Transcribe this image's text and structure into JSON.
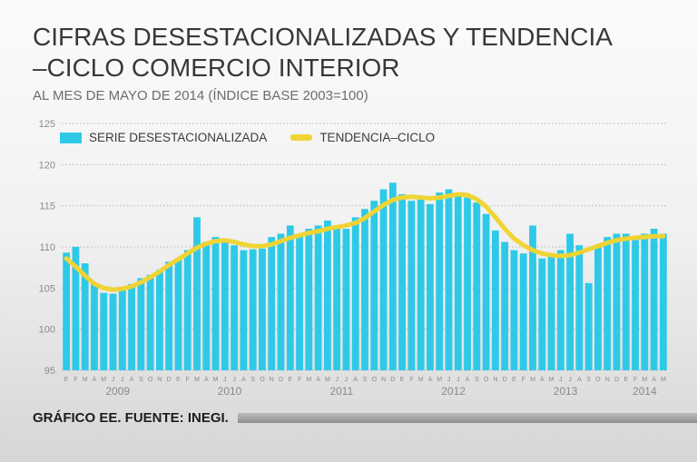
{
  "header": {
    "title_line1": "CIFRAS DESESTACIONALIZADAS Y TENDENCIA",
    "title_line2": "–CICLO COMERCIO INTERIOR",
    "subtitle": "AL MES DE MAYO DE 2014 (ÍNDICE BASE 2003=100)"
  },
  "legend": {
    "series_label": "SERIE DESESTACIONALIZADA",
    "trend_label": "TENDENCIA–CICLO"
  },
  "footer": {
    "source": "GRÁFICO EE. FUENTE: INEGI."
  },
  "colors": {
    "bar": "#2fc9e8",
    "trend": "#f0d435",
    "grid": "#b5b5b5",
    "axis_text": "#8a8a8a"
  },
  "chart_data": {
    "type": "bar",
    "title": "CIFRAS DESESTACIONALIZADAS Y TENDENCIA–CICLO COMERCIO INTERIOR",
    "xlabel": "",
    "ylabel": "Índice base 2003=100",
    "ylim": [
      95,
      125
    ],
    "yticks": [
      95,
      100,
      105,
      110,
      115,
      120,
      125
    ],
    "grid": true,
    "legend_position": "top-left",
    "month_letters": [
      "E",
      "F",
      "M",
      "A",
      "M",
      "J",
      "J",
      "A",
      "S",
      "O",
      "N",
      "D"
    ],
    "years": [
      {
        "label": "2009",
        "months": 12
      },
      {
        "label": "2010",
        "months": 12
      },
      {
        "label": "2011",
        "months": 12
      },
      {
        "label": "2012",
        "months": 12
      },
      {
        "label": "2013",
        "months": 12
      },
      {
        "label": "2014",
        "months": 5
      }
    ],
    "series": [
      {
        "name": "SERIE DESESTACIONALIZADA",
        "type": "bar",
        "values": [
          109.3,
          110.0,
          108.0,
          105.6,
          104.4,
          104.3,
          105.0,
          105.5,
          106.2,
          106.6,
          107.2,
          108.2,
          108.6,
          109.6,
          113.6,
          110.6,
          111.2,
          110.6,
          110.2,
          109.6,
          109.7,
          109.8,
          111.2,
          111.6,
          112.6,
          111.6,
          112.2,
          112.6,
          113.2,
          112.6,
          112.2,
          113.6,
          114.6,
          115.6,
          117.0,
          117.8,
          116.4,
          115.6,
          115.8,
          115.2,
          116.6,
          117.0,
          116.6,
          116.0,
          115.4,
          114.0,
          112.0,
          110.6,
          109.6,
          109.2,
          112.6,
          108.6,
          109.2,
          109.6,
          111.6,
          110.2,
          105.6,
          110.2,
          111.2,
          111.6,
          111.6,
          111.2,
          111.6,
          112.2,
          111.6
        ]
      },
      {
        "name": "TENDENCIA–CICLO",
        "type": "line",
        "values": [
          108.6,
          107.6,
          106.5,
          105.5,
          105.0,
          104.8,
          104.9,
          105.2,
          105.7,
          106.3,
          107.0,
          107.8,
          108.5,
          109.2,
          109.9,
          110.4,
          110.7,
          110.8,
          110.6,
          110.3,
          110.1,
          110.1,
          110.3,
          110.7,
          111.1,
          111.4,
          111.7,
          111.9,
          112.2,
          112.4,
          112.6,
          112.9,
          113.5,
          114.3,
          115.1,
          115.7,
          116.0,
          116.1,
          116.0,
          115.9,
          116.0,
          116.2,
          116.4,
          116.3,
          115.8,
          114.9,
          113.6,
          112.2,
          111.0,
          110.2,
          109.6,
          109.2,
          109.0,
          108.9,
          109.0,
          109.3,
          109.7,
          110.1,
          110.5,
          110.8,
          111.0,
          111.1,
          111.2,
          111.3,
          111.3
        ]
      }
    ]
  }
}
